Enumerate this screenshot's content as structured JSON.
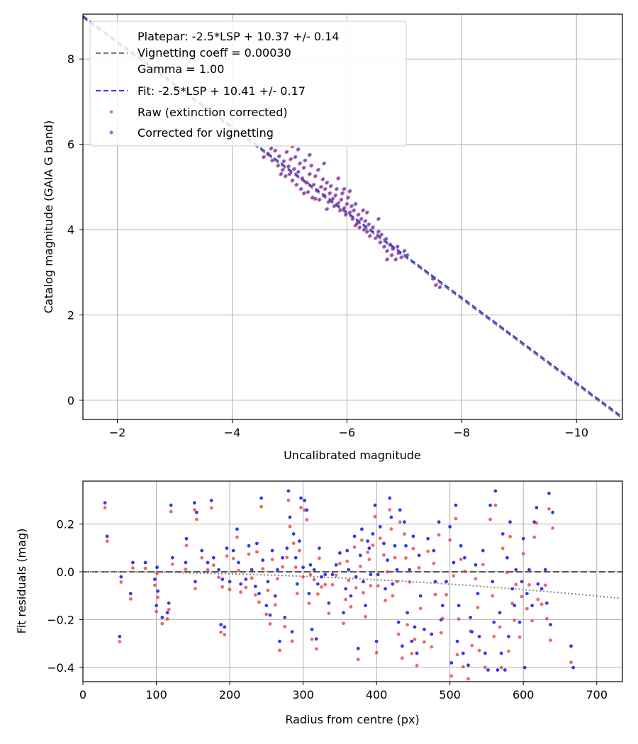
{
  "chart_data": [
    {
      "type": "scatter",
      "id": "calibration",
      "xlabel": "Uncalibrated magnitude",
      "ylabel": "Catalog magnitude (GAIA G band)",
      "xlim": [
        -1.4,
        -10.8
      ],
      "ylim": [
        9.05,
        -0.45
      ],
      "xticks": [
        -2,
        -4,
        -6,
        -8,
        -10
      ],
      "xtick_labels": [
        "−2",
        "−4",
        "−6",
        "−8",
        "−10"
      ],
      "yticks": [
        0,
        2,
        4,
        6,
        8
      ],
      "ytick_labels": [
        "0",
        "2",
        "4",
        "6",
        "8"
      ],
      "grid": true,
      "legend_position": "upper-left",
      "lines": [
        {
          "name": "Platepar: -2.5*LSP + 10.37 +/- 0.14",
          "extra_labels": [
            "Vignetting coeff = 0.00030",
            "Gamma = 1.00"
          ],
          "slope": 1.0,
          "intercept": 10.37,
          "color": "#777777",
          "style": "dashed"
        },
        {
          "name": "Fit: -2.5*LSP + 10.41 +/- 0.17",
          "slope": 1.0,
          "intercept": 10.41,
          "color": "#3333ee",
          "style": "dashed"
        }
      ],
      "series": [
        {
          "name": "Raw (extinction corrected)",
          "color": "#ee3333",
          "marker": "dot"
        },
        {
          "name": "Corrected for vignetting",
          "color": "#3333ee",
          "marker": "dot"
        }
      ],
      "points": [
        [
          -4.55,
          5.7
        ],
        [
          -4.62,
          5.78
        ],
        [
          -4.7,
          5.62
        ],
        [
          -4.75,
          5.85
        ],
        [
          -4.8,
          5.5
        ],
        [
          -4.82,
          5.72
        ],
        [
          -4.88,
          5.4
        ],
        [
          -4.9,
          5.6
        ],
        [
          -4.93,
          5.25
        ],
        [
          -4.95,
          5.82
        ],
        [
          -4.98,
          5.48
        ],
        [
          -5.0,
          5.3
        ],
        [
          -5.02,
          5.65
        ],
        [
          -5.05,
          5.15
        ],
        [
          -5.08,
          5.42
        ],
        [
          -5.1,
          5.7
        ],
        [
          -5.12,
          5.05
        ],
        [
          -5.15,
          5.35
        ],
        [
          -5.18,
          5.55
        ],
        [
          -5.2,
          4.95
        ],
        [
          -5.22,
          5.2
        ],
        [
          -5.25,
          5.45
        ],
        [
          -5.27,
          5.62
        ],
        [
          -5.3,
          5.1
        ],
        [
          -5.32,
          4.88
        ],
        [
          -5.35,
          5.3
        ],
        [
          -5.38,
          5.5
        ],
        [
          -5.4,
          4.75
        ],
        [
          -5.42,
          5.05
        ],
        [
          -5.45,
          5.25
        ],
        [
          -5.48,
          4.92
        ],
        [
          -5.5,
          5.4
        ],
        [
          -5.52,
          4.7
        ],
        [
          -5.55,
          5.0
        ],
        [
          -5.58,
          5.18
        ],
        [
          -5.6,
          4.8
        ],
        [
          -5.62,
          4.95
        ],
        [
          -5.65,
          5.1
        ],
        [
          -5.68,
          4.65
        ],
        [
          -5.7,
          4.85
        ],
        [
          -5.72,
          5.02
        ],
        [
          -5.75,
          4.72
        ],
        [
          -5.78,
          4.55
        ],
        [
          -5.8,
          4.8
        ],
        [
          -5.82,
          4.95
        ],
        [
          -5.85,
          4.62
        ],
        [
          -5.88,
          4.45
        ],
        [
          -5.9,
          4.7
        ],
        [
          -5.92,
          4.85
        ],
        [
          -5.95,
          4.5
        ],
        [
          -5.98,
          4.35
        ],
        [
          -6.0,
          4.6
        ],
        [
          -6.02,
          4.75
        ],
        [
          -6.05,
          4.4
        ],
        [
          -6.08,
          4.55
        ],
        [
          -6.1,
          4.25
        ],
        [
          -6.12,
          4.45
        ],
        [
          -6.15,
          4.6
        ],
        [
          -6.18,
          4.15
        ],
        [
          -6.2,
          4.35
        ],
        [
          -6.22,
          4.05
        ],
        [
          -6.25,
          4.25
        ],
        [
          -6.28,
          4.45
        ],
        [
          -6.3,
          4.0
        ],
        [
          -6.32,
          4.2
        ],
        [
          -6.35,
          3.95
        ],
        [
          -6.38,
          4.12
        ],
        [
          -6.4,
          3.85
        ],
        [
          -6.45,
          4.05
        ],
        [
          -6.5,
          3.8
        ],
        [
          -6.55,
          3.95
        ],
        [
          -6.58,
          3.7
        ],
        [
          -6.6,
          3.88
        ],
        [
          -6.65,
          3.6
        ],
        [
          -6.68,
          3.78
        ],
        [
          -6.7,
          3.5
        ],
        [
          -6.75,
          3.65
        ],
        [
          -6.78,
          3.4
        ],
        [
          -6.8,
          3.55
        ],
        [
          -6.85,
          3.3
        ],
        [
          -6.9,
          3.45
        ],
        [
          -6.95,
          3.35
        ],
        [
          -7.0,
          3.5
        ],
        [
          -7.05,
          3.4
        ],
        [
          -4.68,
          5.9
        ],
        [
          -5.15,
          5.88
        ],
        [
          -5.6,
          5.55
        ],
        [
          -5.25,
          4.85
        ],
        [
          -5.45,
          4.72
        ],
        [
          -5.05,
          5.95
        ],
        [
          -6.35,
          4.4
        ],
        [
          -6.05,
          4.9
        ],
        [
          -5.85,
          5.2
        ],
        [
          -6.55,
          4.25
        ],
        [
          -6.7,
          3.3
        ],
        [
          -6.88,
          3.6
        ],
        [
          -7.55,
          2.7
        ],
        [
          -7.62,
          2.65
        ],
        [
          -7.5,
          2.85
        ],
        [
          -4.85,
          5.3
        ],
        [
          -5.35,
          5.75
        ],
        [
          -5.65,
          4.48
        ],
        [
          -6.15,
          4.1
        ],
        [
          -5.95,
          4.95
        ]
      ]
    },
    {
      "type": "scatter",
      "id": "residuals",
      "xlabel": "Radius from centre (px)",
      "ylabel": "Fit residuals (mag)",
      "xlim": [
        0,
        735
      ],
      "ylim": [
        -0.46,
        0.38
      ],
      "xticks": [
        0,
        100,
        200,
        300,
        400,
        500,
        600,
        700
      ],
      "xtick_labels": [
        "0",
        "100",
        "200",
        "300",
        "400",
        "500",
        "600",
        "700"
      ],
      "yticks": [
        0.2,
        0.0,
        -0.2,
        -0.4
      ],
      "ytick_labels": [
        "0.2",
        "0.0",
        "−0.2",
        "−0.4"
      ],
      "grid": true,
      "reference_line": {
        "y": 0,
        "color": "#555555",
        "style": "dashed"
      },
      "vignetting_curve": {
        "coeff": 0.0003,
        "color": "#888888",
        "style": "dotted"
      },
      "series": [
        {
          "name": "Raw (extinction corrected)",
          "color": "#ee3333"
        },
        {
          "name": "Corrected for vignetting",
          "color": "#2222ee"
        }
      ],
      "points": [
        [
          30,
          0.28
        ],
        [
          33,
          0.14
        ],
        [
          50,
          -0.28
        ],
        [
          52,
          -0.03
        ],
        [
          65,
          -0.1
        ],
        [
          68,
          0.03
        ],
        [
          85,
          0.03
        ],
        [
          98,
          -0.04
        ],
        [
          100,
          -0.15
        ],
        [
          101,
          0.01
        ],
        [
          102,
          -0.09
        ],
        [
          108,
          -0.2
        ],
        [
          115,
          -0.18
        ],
        [
          117,
          -0.14
        ],
        [
          120,
          0.27
        ],
        [
          122,
          0.05
        ],
        [
          140,
          0.03
        ],
        [
          141,
          0.13
        ],
        [
          152,
          0.28
        ],
        [
          153,
          -0.05
        ],
        [
          155,
          0.24
        ],
        [
          162,
          0.08
        ],
        [
          170,
          0.03
        ],
        [
          175,
          0.29
        ],
        [
          178,
          0.05
        ],
        [
          185,
          0.0
        ],
        [
          188,
          -0.23
        ],
        [
          190,
          -0.04
        ],
        [
          193,
          -0.24
        ],
        [
          196,
          0.09
        ],
        [
          200,
          -0.05
        ],
        [
          205,
          0.08
        ],
        [
          210,
          0.17
        ],
        [
          212,
          0.03
        ],
        [
          215,
          -0.06
        ],
        [
          222,
          -0.04
        ],
        [
          226,
          0.1
        ],
        [
          230,
          0.0
        ],
        [
          235,
          -0.07
        ],
        [
          237,
          0.11
        ],
        [
          240,
          -0.1
        ],
        [
          243,
          0.3
        ],
        [
          245,
          0.04
        ],
        [
          250,
          -0.15
        ],
        [
          252,
          -0.05
        ],
        [
          255,
          -0.19
        ],
        [
          258,
          0.08
        ],
        [
          262,
          -0.11
        ],
        [
          265,
          0.0
        ],
        [
          268,
          -0.3
        ],
        [
          272,
          0.05
        ],
        [
          275,
          -0.2
        ],
        [
          278,
          0.09
        ],
        [
          280,
          0.33
        ],
        [
          282,
          0.22
        ],
        [
          285,
          -0.26
        ],
        [
          287,
          0.15
        ],
        [
          290,
          0.05
        ],
        [
          292,
          -0.06
        ],
        [
          295,
          0.12
        ],
        [
          297,
          0.3
        ],
        [
          300,
          0.01
        ],
        [
          302,
          0.29
        ],
        [
          305,
          0.25
        ],
        [
          308,
          -0.1
        ],
        [
          310,
          0.02
        ],
        [
          312,
          -0.25
        ],
        [
          315,
          0.0
        ],
        [
          318,
          -0.29
        ],
        [
          320,
          -0.06
        ],
        [
          322,
          0.09
        ],
        [
          325,
          -0.03
        ],
        [
          330,
          -0.02
        ],
        [
          335,
          -0.14
        ],
        [
          340,
          -0.02
        ],
        [
          345,
          0.02
        ],
        [
          350,
          0.07
        ],
        [
          355,
          -0.18
        ],
        [
          358,
          -0.08
        ],
        [
          360,
          0.08
        ],
        [
          362,
          0.0
        ],
        [
          365,
          -0.11
        ],
        [
          370,
          0.14
        ],
        [
          372,
          -0.03
        ],
        [
          375,
          -0.33
        ],
        [
          378,
          0.06
        ],
        [
          380,
          0.17
        ],
        [
          382,
          -0.05
        ],
        [
          385,
          -0.15
        ],
        [
          388,
          0.12
        ],
        [
          390,
          0.09
        ],
        [
          392,
          -0.02
        ],
        [
          395,
          0.15
        ],
        [
          398,
          0.27
        ],
        [
          400,
          -0.3
        ],
        [
          402,
          -0.02
        ],
        [
          405,
          0.18
        ],
        [
          410,
          0.11
        ],
        [
          412,
          -0.08
        ],
        [
          415,
          0.04
        ],
        [
          418,
          0.3
        ],
        [
          420,
          0.22
        ],
        [
          422,
          -0.06
        ],
        [
          425,
          0.1
        ],
        [
          428,
          0.0
        ],
        [
          430,
          -0.22
        ],
        [
          432,
          0.25
        ],
        [
          435,
          -0.32
        ],
        [
          438,
          0.2
        ],
        [
          440,
          0.1
        ],
        [
          442,
          -0.18
        ],
        [
          445,
          0.0
        ],
        [
          448,
          -0.3
        ],
        [
          450,
          0.14
        ],
        [
          452,
          -0.24
        ],
        [
          455,
          -0.35
        ],
        [
          458,
          0.06
        ],
        [
          460,
          -0.11
        ],
        [
          465,
          -0.25
        ],
        [
          470,
          0.13
        ],
        [
          475,
          -0.27
        ],
        [
          478,
          0.08
        ],
        [
          480,
          -0.05
        ],
        [
          485,
          0.2
        ],
        [
          488,
          -0.21
        ],
        [
          490,
          -0.15
        ],
        [
          495,
          -0.05
        ],
        [
          500,
          0.18
        ],
        [
          502,
          -0.39
        ],
        [
          505,
          0.03
        ],
        [
          508,
          0.27
        ],
        [
          510,
          -0.3
        ],
        [
          512,
          -0.15
        ],
        [
          515,
          0.1
        ],
        [
          518,
          -0.35
        ],
        [
          520,
          0.05
        ],
        [
          525,
          -0.4
        ],
        [
          528,
          -0.2
        ],
        [
          530,
          -0.26
        ],
        [
          535,
          0.02
        ],
        [
          538,
          -0.1
        ],
        [
          540,
          -0.28
        ],
        [
          545,
          0.08
        ],
        [
          548,
          -0.35
        ],
        [
          552,
          -0.42
        ],
        [
          555,
          0.27
        ],
        [
          558,
          -0.05
        ],
        [
          560,
          -0.22
        ],
        [
          562,
          0.33
        ],
        [
          565,
          -0.42
        ],
        [
          568,
          -0.18
        ],
        [
          570,
          -0.35
        ],
        [
          572,
          0.15
        ],
        [
          575,
          -0.42
        ],
        [
          578,
          0.05
        ],
        [
          580,
          -0.28
        ],
        [
          582,
          0.2
        ],
        [
          585,
          -0.08
        ],
        [
          588,
          -0.15
        ],
        [
          590,
          0.0
        ],
        [
          595,
          -0.22
        ],
        [
          598,
          -0.05
        ],
        [
          600,
          0.13
        ],
        [
          602,
          -0.41
        ],
        [
          605,
          -0.1
        ],
        [
          608,
          0.0
        ],
        [
          612,
          -0.15
        ],
        [
          615,
          0.2
        ],
        [
          618,
          0.26
        ],
        [
          620,
          -0.06
        ],
        [
          625,
          -0.08
        ],
        [
          630,
          0.0
        ],
        [
          632,
          -0.14
        ],
        [
          635,
          0.32
        ],
        [
          637,
          -0.23
        ],
        [
          640,
          0.24
        ],
        [
          665,
          -0.32
        ],
        [
          668,
          -0.41
        ]
      ]
    }
  ]
}
